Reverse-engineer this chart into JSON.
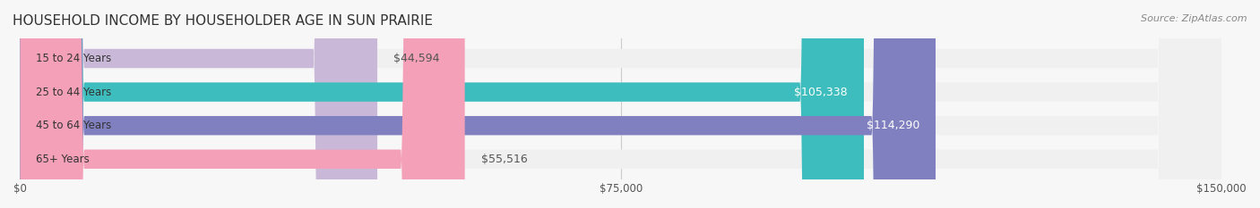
{
  "title": "HOUSEHOLD INCOME BY HOUSEHOLDER AGE IN SUN PRAIRIE",
  "source": "Source: ZipAtlas.com",
  "categories": [
    "15 to 24 Years",
    "25 to 44 Years",
    "45 to 64 Years",
    "65+ Years"
  ],
  "values": [
    44594,
    105338,
    114290,
    55516
  ],
  "bar_colors": [
    "#c9b8d8",
    "#3dbdbd",
    "#8080c0",
    "#f4a0b8"
  ],
  "bar_bg_color": "#f0f0f0",
  "background_color": "#f7f7f7",
  "xlim": [
    0,
    150000
  ],
  "xticks": [
    0,
    75000,
    150000
  ],
  "xtick_labels": [
    "$0",
    "$75,000",
    "$150,000"
  ],
  "label_color_dark": "#555555",
  "label_color_white": "#ffffff",
  "value_threshold": 80000,
  "title_fontsize": 11,
  "source_fontsize": 8,
  "bar_label_fontsize": 9,
  "category_fontsize": 8.5,
  "tick_fontsize": 8.5
}
